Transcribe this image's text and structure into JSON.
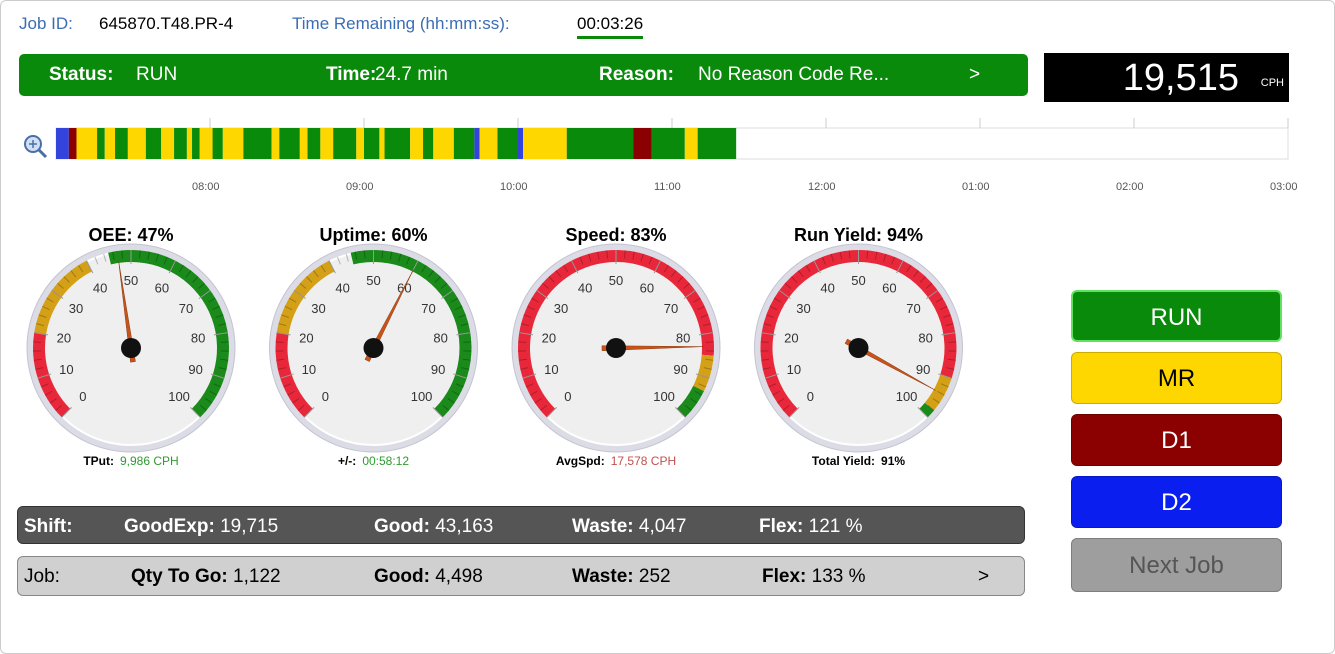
{
  "header": {
    "job_id_label": "Job ID:",
    "job_id": "645870.T48.PR-4",
    "time_remaining_label": "Time Remaining (hh:mm:ss):",
    "time_remaining": "00:03:26"
  },
  "status_bar": {
    "status_label": "Status:",
    "status": "RUN",
    "time_label": "Time:",
    "time": "24.7 min",
    "reason_label": "Reason:",
    "reason": "No Reason Code Re...",
    "more": ">"
  },
  "rate": {
    "value": "19,515",
    "unit": "CPH"
  },
  "timeline": {
    "xlim": [
      0,
      480
    ],
    "ticks": [
      {
        "value": 60,
        "label": "08:00"
      },
      {
        "value": 120,
        "label": "09:00"
      },
      {
        "value": 180,
        "label": "10:00"
      },
      {
        "value": 240,
        "label": "11:00"
      },
      {
        "value": 300,
        "label": "12:00"
      },
      {
        "value": 360,
        "label": "01:00"
      },
      {
        "value": 420,
        "label": "02:00"
      },
      {
        "value": 480,
        "label": "03:00"
      }
    ],
    "segments": [
      {
        "start": 0,
        "end": 5,
        "color": "#3344dd"
      },
      {
        "start": 5,
        "end": 8,
        "color": "#8b0000"
      },
      {
        "start": 8,
        "end": 16,
        "color": "#ffd700"
      },
      {
        "start": 16,
        "end": 19,
        "color": "#0a8a0a"
      },
      {
        "start": 19,
        "end": 23,
        "color": "#ffd700"
      },
      {
        "start": 23,
        "end": 28,
        "color": "#0a8a0a"
      },
      {
        "start": 28,
        "end": 35,
        "color": "#ffd700"
      },
      {
        "start": 35,
        "end": 41,
        "color": "#0a8a0a"
      },
      {
        "start": 41,
        "end": 46,
        "color": "#ffd700"
      },
      {
        "start": 46,
        "end": 51,
        "color": "#0a8a0a"
      },
      {
        "start": 51,
        "end": 53,
        "color": "#ffd700"
      },
      {
        "start": 53,
        "end": 56,
        "color": "#0a8a0a"
      },
      {
        "start": 56,
        "end": 61,
        "color": "#ffd700"
      },
      {
        "start": 61,
        "end": 65,
        "color": "#0a8a0a"
      },
      {
        "start": 65,
        "end": 73,
        "color": "#ffd700"
      },
      {
        "start": 73,
        "end": 84,
        "color": "#0a8a0a"
      },
      {
        "start": 84,
        "end": 87,
        "color": "#ffd700"
      },
      {
        "start": 87,
        "end": 95,
        "color": "#0a8a0a"
      },
      {
        "start": 95,
        "end": 98,
        "color": "#ffd700"
      },
      {
        "start": 98,
        "end": 103,
        "color": "#0a8a0a"
      },
      {
        "start": 103,
        "end": 108,
        "color": "#ffd700"
      },
      {
        "start": 108,
        "end": 117,
        "color": "#0a8a0a"
      },
      {
        "start": 117,
        "end": 120,
        "color": "#ffd700"
      },
      {
        "start": 120,
        "end": 126,
        "color": "#0a8a0a"
      },
      {
        "start": 126,
        "end": 128,
        "color": "#ffd700"
      },
      {
        "start": 128,
        "end": 138,
        "color": "#0a8a0a"
      },
      {
        "start": 138,
        "end": 143,
        "color": "#ffd700"
      },
      {
        "start": 143,
        "end": 147,
        "color": "#0a8a0a"
      },
      {
        "start": 147,
        "end": 155,
        "color": "#ffd700"
      },
      {
        "start": 155,
        "end": 163,
        "color": "#0a8a0a"
      },
      {
        "start": 163,
        "end": 165,
        "color": "#3344dd"
      },
      {
        "start": 165,
        "end": 172,
        "color": "#ffd700"
      },
      {
        "start": 172,
        "end": 180,
        "color": "#0a8a0a"
      },
      {
        "start": 180,
        "end": 182,
        "color": "#3344dd"
      },
      {
        "start": 182,
        "end": 199,
        "color": "#ffd700"
      },
      {
        "start": 199,
        "end": 225,
        "color": "#0a8a0a"
      },
      {
        "start": 225,
        "end": 232,
        "color": "#8b0000"
      },
      {
        "start": 232,
        "end": 245,
        "color": "#0a8a0a"
      },
      {
        "start": 245,
        "end": 250,
        "color": "#ffd700"
      },
      {
        "start": 250,
        "end": 265,
        "color": "#0a8a0a"
      }
    ]
  },
  "states": [
    {
      "name": "RUN",
      "color": "#0a8a0a",
      "text_color": "#ffffff"
    },
    {
      "name": "MR",
      "color": "#ffd700",
      "text_color": "#000000"
    },
    {
      "name": "D1",
      "color": "#8b0000",
      "text_color": "#ffffff"
    },
    {
      "name": "D2",
      "color": "#0a1ef0",
      "text_color": "#ffffff"
    }
  ],
  "next_job": "Next Job",
  "dial_labels": [
    0,
    10,
    20,
    30,
    40,
    50,
    60,
    70,
    80,
    90,
    100
  ],
  "gauges": [
    {
      "title": "OEE: 47%",
      "value": 47,
      "bands": [
        {
          "from": 0,
          "to": 20,
          "color": "#e8283a"
        },
        {
          "from": 20,
          "to": 40,
          "color": "#d4a017"
        },
        {
          "from": 45,
          "to": 100,
          "color": "#1a8a1a"
        }
      ],
      "footer_label": "TPut:",
      "footer_value": "9,986 CPH",
      "footer_color": "#2e9a2e"
    },
    {
      "title": "Uptime: 60%",
      "value": 60,
      "bands": [
        {
          "from": 0,
          "to": 20,
          "color": "#e8283a"
        },
        {
          "from": 20,
          "to": 40,
          "color": "#d4a017"
        },
        {
          "from": 45,
          "to": 100,
          "color": "#1a8a1a"
        }
      ],
      "footer_label": "+/-:",
      "footer_value": "00:58:12",
      "footer_color": "#2e9a2e"
    },
    {
      "title": "Speed: 83%",
      "value": 83,
      "bands": [
        {
          "from": 0,
          "to": 85,
          "color": "#e8283a"
        },
        {
          "from": 85,
          "to": 93,
          "color": "#d4a017"
        },
        {
          "from": 93,
          "to": 100,
          "color": "#1a8a1a"
        }
      ],
      "footer_label": "AvgSpd:",
      "footer_value": "17,578 CPH",
      "footer_color": "#c0504d"
    },
    {
      "title": "Run Yield: 94%",
      "value": 94,
      "bands": [
        {
          "from": 0,
          "to": 90,
          "color": "#e8283a"
        },
        {
          "from": 90,
          "to": 98,
          "color": "#d4a017"
        },
        {
          "from": 98,
          "to": 100,
          "color": "#1a8a1a"
        }
      ],
      "footer_label": "Total Yield:",
      "footer_value": "91%",
      "footer_color": "#000000"
    }
  ],
  "shift": {
    "label": "Shift:",
    "items": [
      {
        "label": "GoodExp:",
        "value": "19,715"
      },
      {
        "label": "Good:",
        "value": "43,163"
      },
      {
        "label": "Waste:",
        "value": "4,047"
      },
      {
        "label": "Flex:",
        "value": "121 %"
      }
    ]
  },
  "job": {
    "label": "Job:",
    "items": [
      {
        "label": "Qty To Go:",
        "value": "1,122"
      },
      {
        "label": "Good:",
        "value": "4,498"
      },
      {
        "label": "Waste:",
        "value": "252"
      },
      {
        "label": "Flex:",
        "value": "133 %"
      }
    ],
    "more": ">"
  }
}
